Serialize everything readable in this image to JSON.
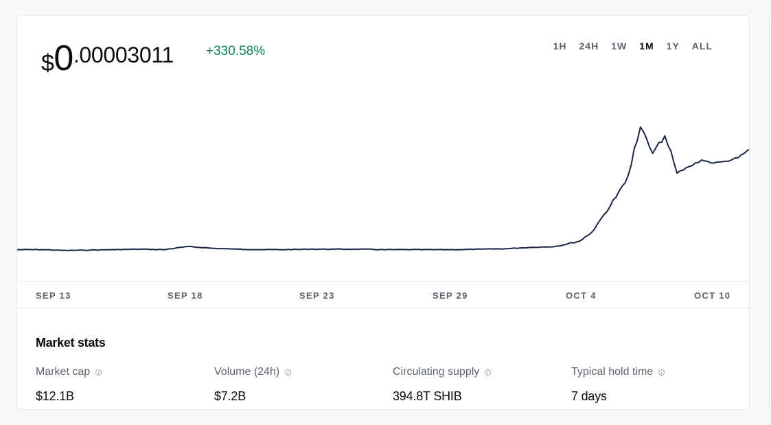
{
  "price": {
    "currency": "$",
    "integer": "0",
    "decimal": ".00003011",
    "change": "+330.58%"
  },
  "ranges": [
    {
      "label": "1H",
      "active": false
    },
    {
      "label": "24H",
      "active": false
    },
    {
      "label": "1W",
      "active": false
    },
    {
      "label": "1M",
      "active": true
    },
    {
      "label": "1Y",
      "active": false
    },
    {
      "label": "ALL",
      "active": false
    }
  ],
  "colors": {
    "line": "#1a2445",
    "positive": "#098551"
  },
  "chart_data": {
    "type": "line",
    "x_ticks": [
      "SEP 13",
      "SEP 18",
      "SEP 23",
      "SEP 29",
      "OCT 4",
      "OCT 10"
    ],
    "x": [
      "2021-09-11",
      "2021-09-12",
      "2021-09-13",
      "2021-09-14",
      "2021-09-15",
      "2021-09-16",
      "2021-09-17",
      "2021-09-18",
      "2021-09-19",
      "2021-09-20",
      "2021-09-21",
      "2021-09-22",
      "2021-09-23",
      "2021-09-24",
      "2021-09-25",
      "2021-09-26",
      "2021-09-27",
      "2021-09-28",
      "2021-09-29",
      "2021-09-30",
      "2021-10-01",
      "2021-10-02",
      "2021-10-03",
      "2021-10-04",
      "2021-10-04",
      "2021-10-05",
      "2021-10-05",
      "2021-10-06",
      "2021-10-06",
      "2021-10-07",
      "2021-10-07",
      "2021-10-08",
      "2021-10-08",
      "2021-10-09",
      "2021-10-09",
      "2021-10-10",
      "2021-10-10",
      "2021-10-11"
    ],
    "y": [
      7.1e-06,
      7.1e-06,
      6.9e-06,
      7e-06,
      7.1e-06,
      7.2e-06,
      7.1e-06,
      7.8e-06,
      7.4e-06,
      7.2e-06,
      7.1e-06,
      7.1e-06,
      7.2e-06,
      7.2e-06,
      7.2e-06,
      7.1e-06,
      7.1e-06,
      7.1e-06,
      7.1e-06,
      7.2e-06,
      7.3e-06,
      7.6e-06,
      7.8e-06,
      9e-06,
      1.1e-05,
      1.5e-05,
      1.9e-05,
      2.4e-05,
      3.5e-05,
      2.9e-05,
      3.3e-05,
      2.45e-05,
      2.6e-05,
      2.75e-05,
      2.68e-05,
      2.72e-05,
      2.8e-05,
      3e-05
    ],
    "y_range": [
      0,
      4e-05
    ],
    "grid": false,
    "legend": "none"
  },
  "market_stats": {
    "title": "Market stats",
    "items": [
      {
        "label": "Market cap",
        "value": "$12.1B"
      },
      {
        "label": "Volume (24h)",
        "value": "$7.2B"
      },
      {
        "label": "Circulating supply",
        "value": "394.8T SHIB"
      },
      {
        "label": "Typical hold time",
        "value": "7 days"
      }
    ]
  }
}
